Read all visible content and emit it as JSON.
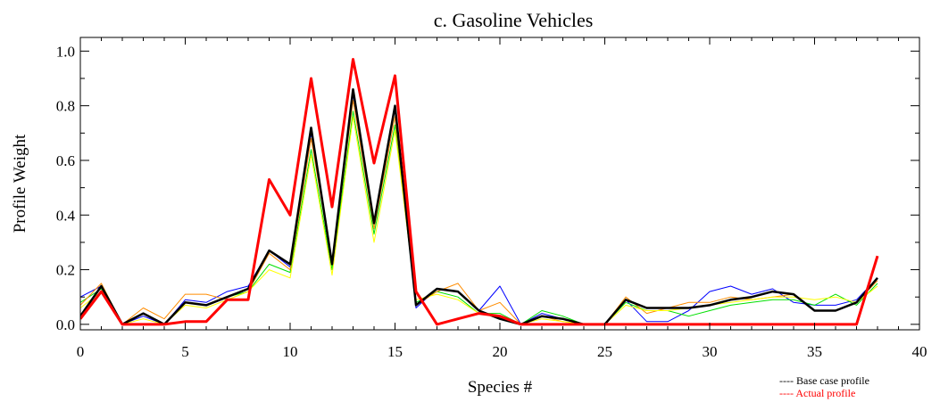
{
  "chart_data": {
    "type": "line",
    "title": "c.  Gasoline Vehicles",
    "xlabel": "Species #",
    "ylabel": "Profile Weight",
    "xlim": [
      0,
      40
    ],
    "ylim": [
      -0.02,
      1.05
    ],
    "x_ticks": [
      0,
      5,
      10,
      15,
      20,
      25,
      30,
      35,
      40
    ],
    "y_ticks": [
      0.0,
      0.2,
      0.4,
      0.6,
      0.8,
      1.0
    ],
    "x_tick_labels": [
      "0",
      "5",
      "10",
      "15",
      "20",
      "25",
      "30",
      "35",
      "40"
    ],
    "y_tick_labels": [
      "0.0",
      "0.2",
      "0.4",
      "0.6",
      "0.8",
      "1.0"
    ],
    "grid": false,
    "legend_position": "bottom-right",
    "x": [
      0,
      1,
      2,
      3,
      4,
      5,
      6,
      7,
      8,
      9,
      10,
      11,
      12,
      13,
      14,
      15,
      16,
      17,
      18,
      19,
      20,
      21,
      22,
      23,
      24,
      25,
      26,
      27,
      28,
      29,
      30,
      31,
      32,
      33,
      34,
      35,
      36,
      37,
      38
    ],
    "series": [
      {
        "color": "#0000ff",
        "width": 1,
        "values": [
          0.1,
          0.14,
          0.0,
          0.03,
          0.0,
          0.09,
          0.08,
          0.12,
          0.14,
          0.27,
          0.21,
          0.7,
          0.23,
          0.84,
          0.38,
          0.79,
          0.06,
          0.13,
          0.12,
          0.05,
          0.14,
          0.0,
          0.04,
          0.02,
          0.0,
          0.0,
          0.09,
          0.01,
          0.01,
          0.05,
          0.12,
          0.14,
          0.11,
          0.13,
          0.08,
          0.07,
          0.07,
          0.09,
          0.17
        ]
      },
      {
        "color": "#00e000",
        "width": 1,
        "values": [
          0.08,
          0.13,
          0.0,
          0.04,
          0.0,
          0.08,
          0.07,
          0.1,
          0.12,
          0.22,
          0.19,
          0.64,
          0.2,
          0.78,
          0.33,
          0.73,
          0.08,
          0.12,
          0.1,
          0.04,
          0.04,
          0.0,
          0.05,
          0.03,
          0.0,
          0.0,
          0.08,
          0.05,
          0.05,
          0.03,
          0.05,
          0.07,
          0.08,
          0.09,
          0.09,
          0.07,
          0.11,
          0.07,
          0.15
        ]
      },
      {
        "color": "#ff8c00",
        "width": 1,
        "values": [
          0.07,
          0.15,
          0.0,
          0.06,
          0.02,
          0.11,
          0.11,
          0.09,
          0.12,
          0.26,
          0.2,
          0.68,
          0.22,
          0.82,
          0.35,
          0.76,
          0.07,
          0.12,
          0.15,
          0.05,
          0.08,
          0.0,
          0.03,
          0.01,
          0.0,
          0.0,
          0.1,
          0.04,
          0.06,
          0.08,
          0.08,
          0.1,
          0.09,
          0.1,
          0.11,
          0.05,
          0.05,
          0.08,
          0.16
        ]
      },
      {
        "color": "#ffff00",
        "width": 1,
        "values": [
          0.06,
          0.12,
          0.0,
          0.02,
          0.0,
          0.07,
          0.06,
          0.09,
          0.12,
          0.2,
          0.17,
          0.62,
          0.18,
          0.76,
          0.3,
          0.71,
          0.09,
          0.11,
          0.09,
          0.04,
          0.03,
          0.0,
          0.02,
          0.01,
          0.0,
          0.0,
          0.07,
          0.05,
          0.05,
          0.06,
          0.07,
          0.08,
          0.09,
          0.1,
          0.1,
          0.09,
          0.1,
          0.08,
          0.14
        ]
      },
      {
        "color": "#000000",
        "width": 2.5,
        "values": [
          0.03,
          0.14,
          0.0,
          0.04,
          0.0,
          0.08,
          0.07,
          0.1,
          0.13,
          0.27,
          0.22,
          0.72,
          0.22,
          0.86,
          0.37,
          0.8,
          0.07,
          0.13,
          0.12,
          0.05,
          0.02,
          0.0,
          0.03,
          0.02,
          0.0,
          0.0,
          0.09,
          0.06,
          0.06,
          0.06,
          0.07,
          0.09,
          0.1,
          0.12,
          0.11,
          0.05,
          0.05,
          0.08,
          0.17
        ]
      },
      {
        "color": "#ff0000",
        "width": 3,
        "values": [
          0.02,
          0.12,
          0.0,
          0.0,
          0.0,
          0.01,
          0.01,
          0.09,
          0.09,
          0.53,
          0.4,
          0.9,
          0.43,
          0.97,
          0.59,
          0.91,
          0.12,
          0.0,
          0.02,
          0.04,
          0.03,
          0.0,
          0.0,
          0.0,
          0.0,
          0.0,
          0.0,
          0.0,
          0.0,
          0.0,
          0.0,
          0.0,
          0.0,
          0.0,
          0.0,
          0.0,
          0.0,
          0.0,
          0.25
        ]
      }
    ],
    "legend": [
      {
        "label": "---- Base case profile",
        "color": "#000000"
      },
      {
        "label": "---- Actual profile",
        "color": "#ff0000"
      }
    ]
  }
}
